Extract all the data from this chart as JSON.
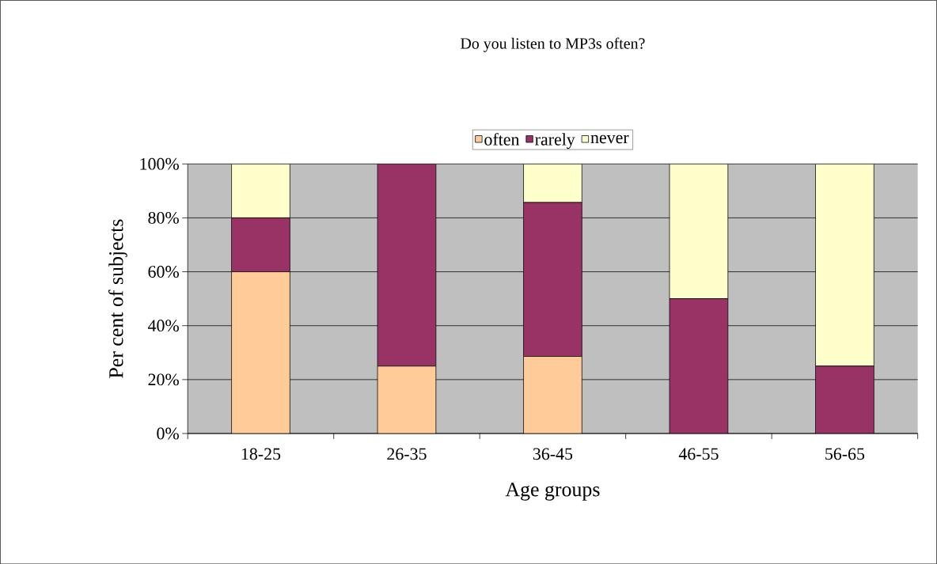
{
  "chart_data": {
    "type": "bar",
    "stacked": true,
    "title": "Do you listen to MP3s often?",
    "xlabel": "Age groups",
    "ylabel": "Per cent of subjects",
    "categories": [
      "18-25",
      "26-35",
      "36-45",
      "46-55",
      "56-65"
    ],
    "series": [
      {
        "name": "often",
        "color": "#ffcc99",
        "values": [
          60,
          25,
          28.6,
          0,
          0
        ]
      },
      {
        "name": "rarely",
        "color": "#993366",
        "values": [
          20,
          75,
          57.1,
          50,
          25
        ]
      },
      {
        "name": "never",
        "color": "#ffffcc",
        "values": [
          20,
          0,
          14.3,
          50,
          75
        ]
      }
    ],
    "ylim": [
      0,
      100
    ],
    "yticks": [
      {
        "value": 0,
        "label": "0%"
      },
      {
        "value": 20,
        "label": "20%"
      },
      {
        "value": 40,
        "label": "40%"
      },
      {
        "value": 60,
        "label": "60%"
      },
      {
        "value": 80,
        "label": "80%"
      },
      {
        "value": 100,
        "label": "100%"
      }
    ],
    "grid": "y",
    "legend": "top"
  }
}
